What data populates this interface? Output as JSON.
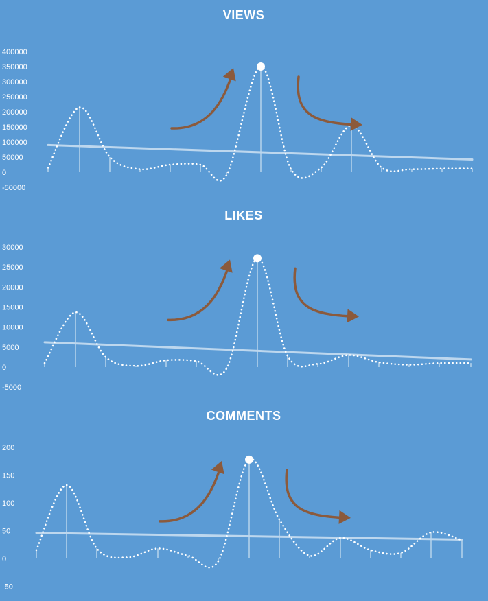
{
  "colors": {
    "background": "#5b9bd5",
    "series_line": "#ffffff",
    "trendline": "#bdd7ee",
    "annotation_arrow": "#8b5a3c"
  },
  "chart_data": [
    {
      "type": "line",
      "title": "VIEWS",
      "yticks": [
        "400000",
        "350000",
        "300000",
        "250000",
        "200000",
        "150000",
        "100000",
        "50000",
        "0",
        "-50000"
      ],
      "ylim": [
        -50000,
        400000
      ],
      "x": [
        0,
        1,
        2,
        3,
        4,
        5,
        6,
        7,
        8,
        9,
        10,
        11,
        12,
        13,
        14
      ],
      "values": [
        15000,
        215000,
        50000,
        10000,
        25000,
        25000,
        -10000,
        350000,
        10000,
        15000,
        155000,
        15000,
        10000,
        12000,
        12000
      ],
      "peak_index": 7,
      "trend": [
        90000,
        42000
      ],
      "annotation": "hand-drawn arrows: rising before peak, falling after peak"
    },
    {
      "type": "line",
      "title": "LIKES",
      "yticks": [
        "30000",
        "25000",
        "20000",
        "15000",
        "10000",
        "5000",
        "0",
        "-5000"
      ],
      "ylim": [
        -5000,
        30000
      ],
      "x": [
        0,
        1,
        2,
        3,
        4,
        5,
        6,
        7,
        8,
        9,
        10,
        11,
        12,
        13,
        14
      ],
      "values": [
        1000,
        13700,
        2500,
        300,
        1700,
        1500,
        -400,
        27200,
        2800,
        800,
        3000,
        1200,
        600,
        1000,
        1000
      ],
      "peak_index": 7,
      "trend": [
        6200,
        1900
      ],
      "annotation": "hand-drawn arrows: rising before peak, falling after peak"
    },
    {
      "type": "line",
      "title": "COMMENTS",
      "yticks": [
        "200",
        "150",
        "100",
        "50",
        "0",
        "-50"
      ],
      "ylim": [
        -50,
        200
      ],
      "x": [
        0,
        1,
        2,
        3,
        4,
        5,
        6,
        7,
        8,
        9,
        10,
        11,
        12,
        13,
        14
      ],
      "values": [
        15,
        132,
        18,
        2,
        18,
        5,
        -5,
        178,
        70,
        5,
        37,
        15,
        10,
        47,
        33
      ],
      "peak_index": 7,
      "trend": [
        46,
        34
      ],
      "annotation": "hand-drawn arrows: rising before peak, falling after peak"
    }
  ]
}
